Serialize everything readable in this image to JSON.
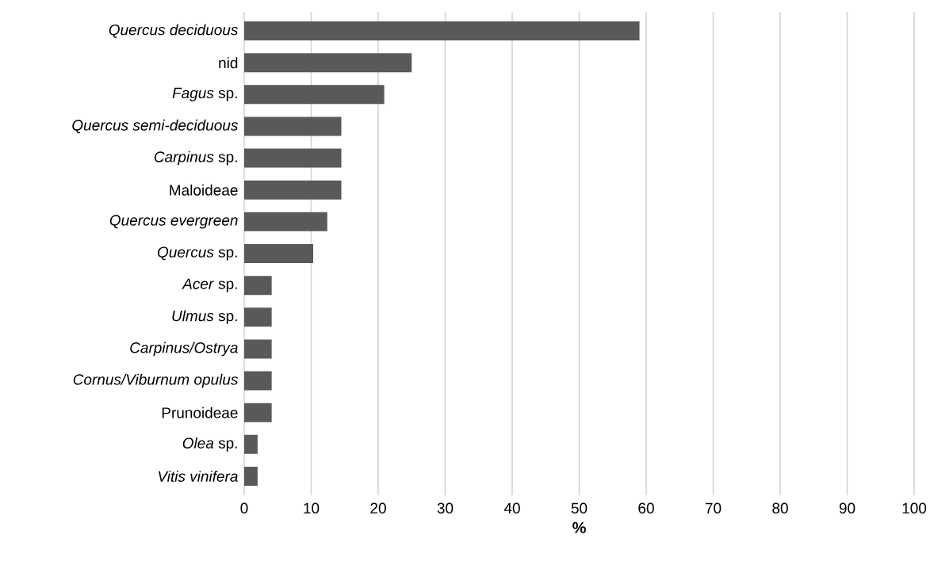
{
  "chart_data": {
    "type": "bar",
    "orientation": "horizontal",
    "xlabel": "%",
    "categories": [
      "*Quercus deciduous*",
      "nid",
      "*Fagus* sp.",
      "*Quercus semi-deciduous*",
      "*Carpinus* sp.",
      "Maloideae",
      "*Quercus evergreen*",
      "*Quercus* sp.",
      "*Acer* sp.",
      "*Ulmus* sp.",
      "*Carpinus/Ostrya*",
      "*Cornus/Viburnum opulus*",
      "Prunoideae",
      "*Olea* sp.",
      "*Vitis vinifera*"
    ],
    "values": [
      59,
      25,
      20.9,
      14.5,
      14.5,
      14.5,
      12.4,
      10.3,
      4.1,
      4.1,
      4.1,
      4.1,
      4.1,
      2.0,
      2.0
    ],
    "color": "#595959",
    "xlim": [
      0,
      100
    ],
    "xticks": [
      0,
      10,
      20,
      30,
      40,
      50,
      60,
      70,
      80,
      90,
      100
    ],
    "grid": "x"
  }
}
